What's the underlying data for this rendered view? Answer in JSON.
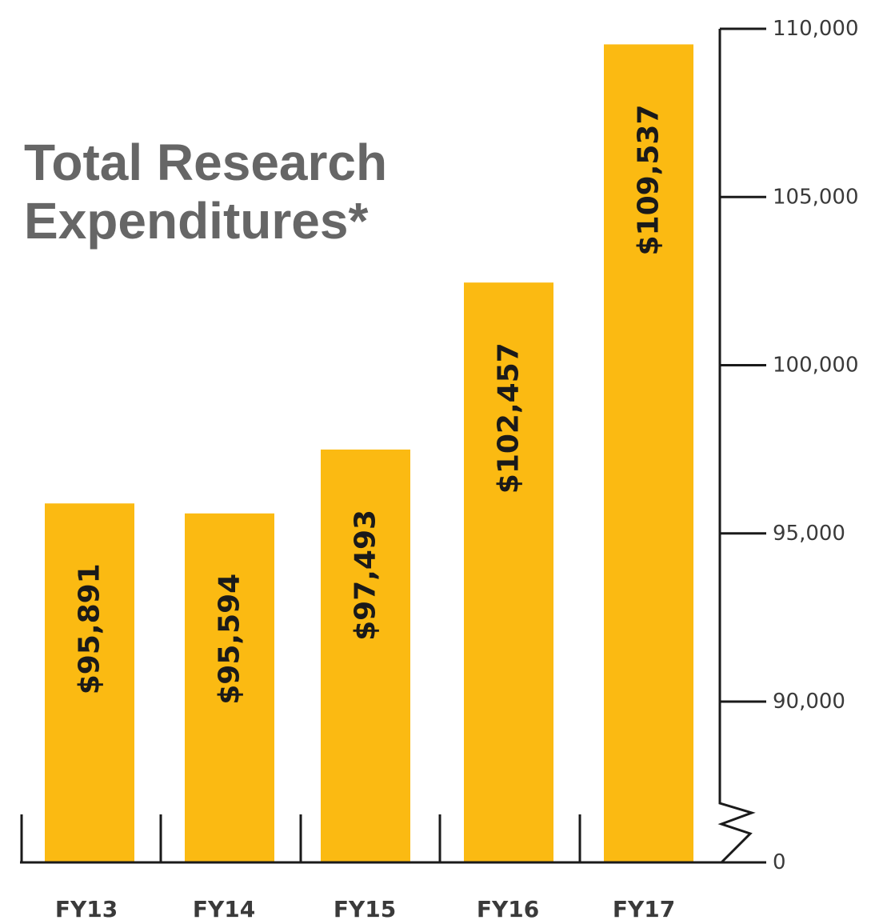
{
  "chart_data": {
    "type": "bar",
    "title": "Total Research Expenditures*",
    "title_lines": [
      "Total Research",
      "Expenditures*"
    ],
    "categories": [
      "FY13",
      "FY14",
      "FY15",
      "FY16",
      "FY17"
    ],
    "values": [
      95891,
      95594,
      97493,
      102457,
      109537
    ],
    "data_labels": [
      "$95,891",
      "$95,594",
      "$97,493",
      "$102,457",
      "$109,537"
    ],
    "y_ticks": [
      {
        "value": 110000,
        "label": "110,000"
      },
      {
        "value": 105000,
        "label": "105,000"
      },
      {
        "value": 100000,
        "label": "100,000"
      },
      {
        "value": 95000,
        "label": "95,000"
      },
      {
        "value": 90000,
        "label": "90,000"
      },
      {
        "value": 0,
        "label": "0"
      }
    ],
    "ylim": [
      90000,
      110000
    ],
    "axis_break": true,
    "y_axis_side": "right",
    "grid": false,
    "bar_color": "#FBBA12",
    "xlabel": "",
    "ylabel": ""
  }
}
